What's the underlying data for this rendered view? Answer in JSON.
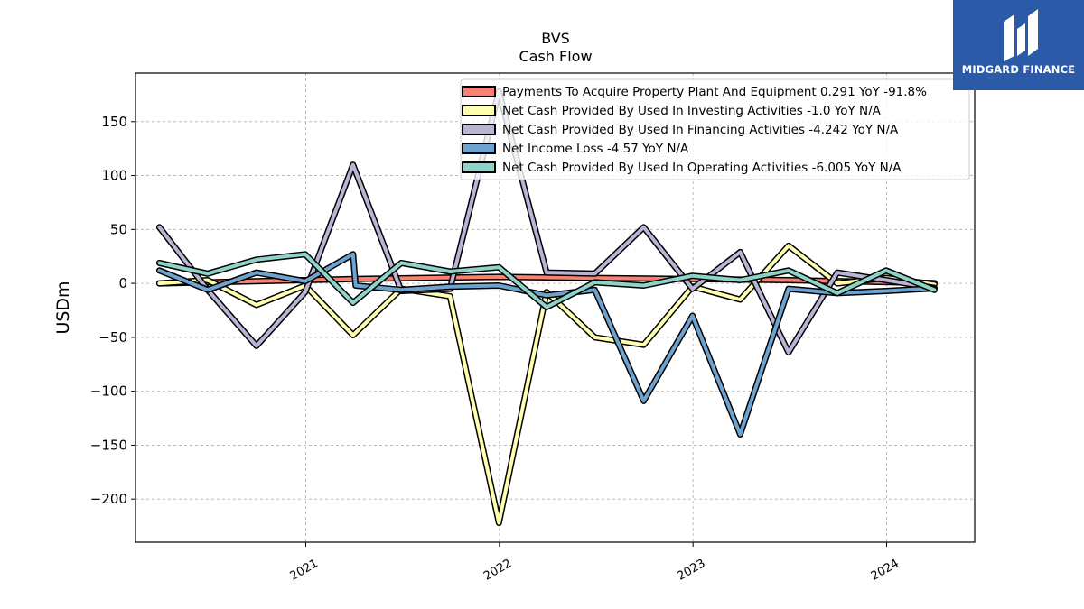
{
  "chart_data": {
    "type": "line",
    "title": "BVS",
    "subtitle": "Cash Flow",
    "ylabel": "USDm",
    "xlabel": "",
    "ylim": [
      -240,
      195
    ],
    "xlim": [
      "2020-02-15",
      "2024-06-15"
    ],
    "grid": true,
    "legend_position": "top-right",
    "y_ticks": [
      150,
      100,
      50,
      0,
      -50,
      -100,
      -150,
      -200
    ],
    "y_tick_labels": [
      "150",
      "100",
      "50",
      "0",
      "−50",
      "−100",
      "−150",
      "−200"
    ],
    "x_ticks": [
      "2021-01-01",
      "2022-01-01",
      "2023-01-01",
      "2024-01-01"
    ],
    "x_tick_labels": [
      "2021",
      "2022",
      "2023",
      "2024"
    ],
    "series": [
      {
        "name": "Payments To Acquire Property Plant And Equipment  0.291 YoY -91.8%",
        "color": "#fa8072",
        "points": [
          [
            "2020-03-31",
            0
          ],
          [
            "2021-03-31",
            4
          ],
          [
            "2021-12-31",
            6
          ],
          [
            "2022-12-31",
            4
          ],
          [
            "2023-06-30",
            3
          ],
          [
            "2024-03-31",
            0.3
          ]
        ]
      },
      {
        "name": "Net Cash Provided By Used In Investing Activities  -1.0 YoY N/A",
        "color": "#ffffb0",
        "points": [
          [
            "2020-03-31",
            0
          ],
          [
            "2020-06-30",
            3
          ],
          [
            "2020-09-30",
            -20
          ],
          [
            "2020-12-31",
            -2
          ],
          [
            "2021-03-31",
            -48
          ],
          [
            "2021-06-30",
            -5
          ],
          [
            "2021-09-30",
            -12
          ],
          [
            "2021-12-31",
            -222
          ],
          [
            "2022-03-31",
            -8
          ],
          [
            "2022-06-30",
            -50
          ],
          [
            "2022-09-30",
            -57
          ],
          [
            "2022-12-31",
            -3
          ],
          [
            "2023-03-31",
            -15
          ],
          [
            "2023-06-30",
            35
          ],
          [
            "2023-09-30",
            0
          ],
          [
            "2023-12-31",
            5
          ],
          [
            "2024-03-31",
            -1
          ]
        ]
      },
      {
        "name": "Net Cash Provided By Used In Financing Activities  -4.242 YoY N/A",
        "color": "#b8b4d6",
        "points": [
          [
            "2020-03-31",
            52
          ],
          [
            "2020-06-30",
            -6
          ],
          [
            "2020-09-30",
            -58
          ],
          [
            "2020-12-31",
            -8
          ],
          [
            "2021-03-31",
            110
          ],
          [
            "2021-06-30",
            -7
          ],
          [
            "2021-09-30",
            -5
          ],
          [
            "2021-12-31",
            178
          ],
          [
            "2022-03-31",
            10
          ],
          [
            "2022-06-30",
            9
          ],
          [
            "2022-09-30",
            52
          ],
          [
            "2022-12-31",
            -5
          ],
          [
            "2023-03-31",
            29
          ],
          [
            "2023-06-30",
            -64
          ],
          [
            "2023-09-30",
            10
          ],
          [
            "2023-12-31",
            3
          ],
          [
            "2024-03-31",
            -4.2
          ]
        ]
      },
      {
        "name": "Net Income Loss  -4.57 YoY N/A",
        "color": "#6fa3cf",
        "points": [
          [
            "2020-03-31",
            12
          ],
          [
            "2020-06-30",
            -6
          ],
          [
            "2020-09-30",
            10
          ],
          [
            "2020-12-31",
            2
          ],
          [
            "2021-03-31",
            27
          ],
          [
            "2021-04-05",
            -2
          ],
          [
            "2021-06-30",
            -6
          ],
          [
            "2021-09-30",
            -3
          ],
          [
            "2021-12-31",
            -2
          ],
          [
            "2022-03-31",
            -11
          ],
          [
            "2022-06-30",
            -6
          ],
          [
            "2022-09-30",
            -109
          ],
          [
            "2022-12-31",
            -30
          ],
          [
            "2023-03-31",
            -140
          ],
          [
            "2023-06-30",
            -5
          ],
          [
            "2023-09-30",
            -9
          ],
          [
            "2023-12-31",
            -7
          ],
          [
            "2024-03-31",
            -4.6
          ]
        ]
      },
      {
        "name": "Net Cash Provided By Used In Operating Activities  -6.005 YoY N/A",
        "color": "#8dd3c7",
        "points": [
          [
            "2020-03-31",
            19
          ],
          [
            "2020-06-30",
            9
          ],
          [
            "2020-09-30",
            22
          ],
          [
            "2020-12-31",
            27
          ],
          [
            "2021-03-31",
            -18
          ],
          [
            "2021-06-30",
            19
          ],
          [
            "2021-09-30",
            11
          ],
          [
            "2021-12-31",
            15
          ],
          [
            "2022-03-31",
            -22
          ],
          [
            "2022-06-30",
            1
          ],
          [
            "2022-09-30",
            -2
          ],
          [
            "2022-12-31",
            7
          ],
          [
            "2023-03-31",
            3
          ],
          [
            "2023-06-30",
            12
          ],
          [
            "2023-09-30",
            -9
          ],
          [
            "2023-12-31",
            12
          ],
          [
            "2024-03-31",
            -6
          ]
        ]
      }
    ]
  },
  "logo": {
    "brand": "MIDGARD FINANCE"
  }
}
